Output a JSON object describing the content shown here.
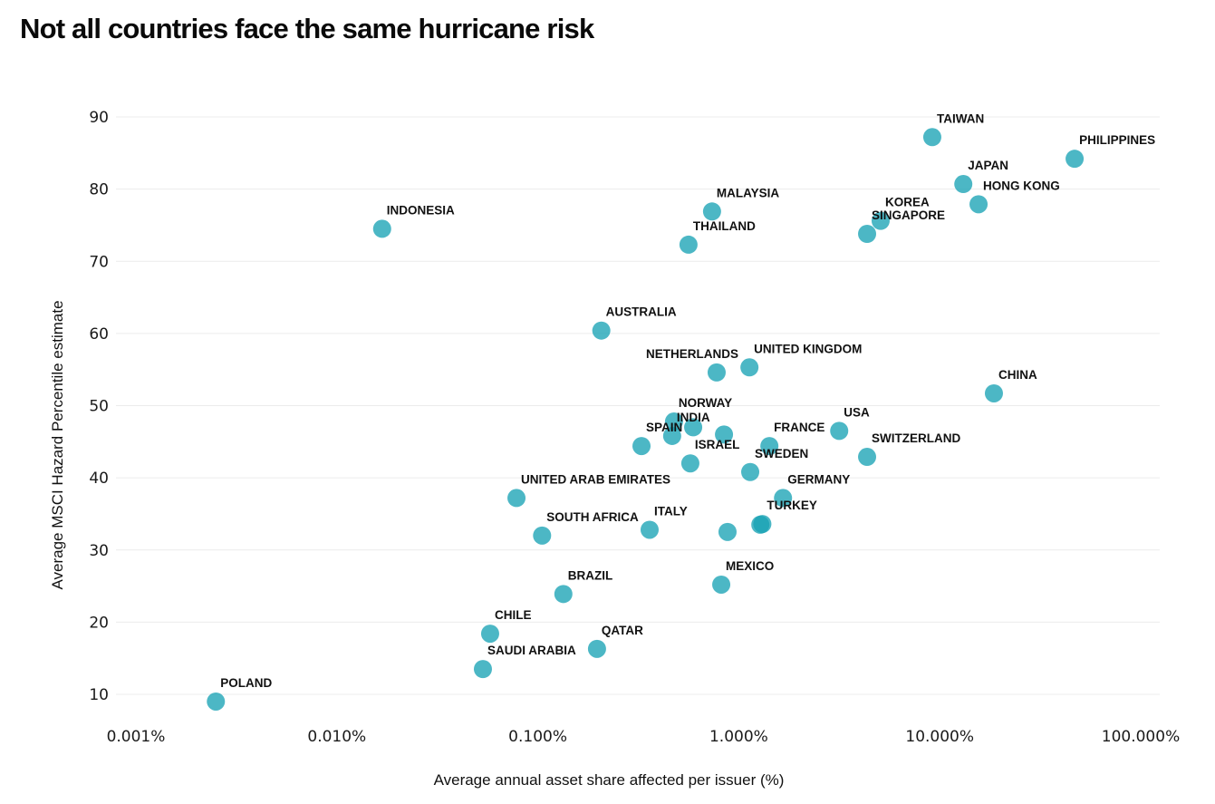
{
  "title": "Not all countries face the same hurricane risk",
  "colors": {
    "point": "#1aa3b5",
    "gridline": "#ececec",
    "text": "#111111"
  },
  "chart_data": {
    "type": "scatter",
    "title": "Not all countries face the same hurricane risk",
    "xlabel": "Average annual asset share affected per issuer (%)",
    "ylabel": "Average MSCI Hazard Percentile estimate",
    "xscale": "log",
    "xlim": [
      0.001,
      100
    ],
    "ylim": [
      10,
      90
    ],
    "x_ticks": [
      0.001,
      0.01,
      0.1,
      1,
      10,
      100
    ],
    "x_tick_labels": [
      "0.001%",
      "0.010%",
      "0.100%",
      "1.000%",
      "10.000%",
      "100.000%"
    ],
    "y_ticks": [
      10,
      20,
      30,
      40,
      50,
      60,
      70,
      80,
      90
    ],
    "y_tick_labels": [
      "10",
      "20",
      "30",
      "40",
      "50",
      "60",
      "70",
      "80",
      "90"
    ],
    "grid": "horizontal",
    "legend": "none",
    "points": [
      {
        "label": "TAIWAN",
        "x": 9.18,
        "y": 87.2
      },
      {
        "label": "PHILIPPINES",
        "x": 46.9,
        "y": 84.2
      },
      {
        "label": "JAPAN",
        "x": 13.1,
        "y": 80.7
      },
      {
        "label": "HONG KONG",
        "x": 15.6,
        "y": 77.9
      },
      {
        "label": "KOREA",
        "x": 5.08,
        "y": 75.6
      },
      {
        "label": "SINGAPORE",
        "x": 4.35,
        "y": 73.8
      },
      {
        "label": "MALAYSIA",
        "x": 0.736,
        "y": 76.9
      },
      {
        "label": "THAILAND",
        "x": 0.562,
        "y": 72.3
      },
      {
        "label": "INDONESIA",
        "x": 0.0168,
        "y": 74.5
      },
      {
        "label": "AUSTRALIA",
        "x": 0.207,
        "y": 60.4
      },
      {
        "label": "NETHERLANDS",
        "x": 0.776,
        "y": 54.6
      },
      {
        "label": "UNITED KINGDOM",
        "x": 1.13,
        "y": 55.3
      },
      {
        "label": "CHINA",
        "x": 18.6,
        "y": 51.7
      },
      {
        "label": "NORWAY",
        "x": 0.476,
        "y": 47.8
      },
      {
        "label": "INDIA",
        "x": 0.466,
        "y": 45.8
      },
      {
        "label": "",
        "x": 0.593,
        "y": 47.0
      },
      {
        "label": "",
        "x": 0.844,
        "y": 46.0
      },
      {
        "label": "SPAIN",
        "x": 0.328,
        "y": 44.4
      },
      {
        "label": "ISRAEL",
        "x": 0.574,
        "y": 42.0
      },
      {
        "label": "FRANCE",
        "x": 1.42,
        "y": 44.4
      },
      {
        "label": "USA",
        "x": 3.16,
        "y": 46.5
      },
      {
        "label": "SWITZERLAND",
        "x": 4.35,
        "y": 42.9
      },
      {
        "label": "SWEDEN",
        "x": 1.14,
        "y": 40.8
      },
      {
        "label": "GERMANY",
        "x": 1.66,
        "y": 37.2
      },
      {
        "label": "UNITED ARAB EMIRATES",
        "x": 0.0783,
        "y": 37.2
      },
      {
        "label": "",
        "x": 1.28,
        "y": 33.5
      },
      {
        "label": "TURKEY",
        "x": 1.31,
        "y": 33.6
      },
      {
        "label": "",
        "x": 0.879,
        "y": 32.5
      },
      {
        "label": "ITALY",
        "x": 0.36,
        "y": 32.8
      },
      {
        "label": "SOUTH AFRICA",
        "x": 0.105,
        "y": 32.0
      },
      {
        "label": "MEXICO",
        "x": 0.818,
        "y": 25.2
      },
      {
        "label": "BRAZIL",
        "x": 0.134,
        "y": 23.9
      },
      {
        "label": "CHILE",
        "x": 0.0579,
        "y": 18.4
      },
      {
        "label": "QATAR",
        "x": 0.197,
        "y": 16.3
      },
      {
        "label": "SAUDI ARABIA",
        "x": 0.0533,
        "y": 13.5
      },
      {
        "label": "POLAND",
        "x": 0.0025,
        "y": 9.0
      }
    ]
  }
}
